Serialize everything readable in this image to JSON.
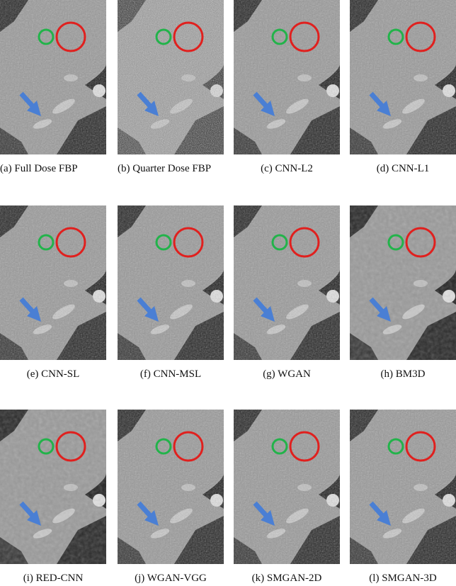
{
  "panels": [
    {
      "caption": "(a) Full Dose FBP"
    },
    {
      "caption": "(b) Quarter Dose FBP"
    },
    {
      "caption": "(c) CNN-L2"
    },
    {
      "caption": "(d) CNN-L1"
    },
    {
      "caption": "(e) CNN-SL"
    },
    {
      "caption": "(f) CNN-MSL"
    },
    {
      "caption": "(g) WGAN"
    },
    {
      "caption": "(h) BM3D"
    },
    {
      "caption": "(i) RED-CNN"
    },
    {
      "caption": "(j) WGAN-VGG"
    },
    {
      "caption": "(k) SMGAN-2D"
    },
    {
      "caption": "(l) SMGAN-3D"
    }
  ]
}
